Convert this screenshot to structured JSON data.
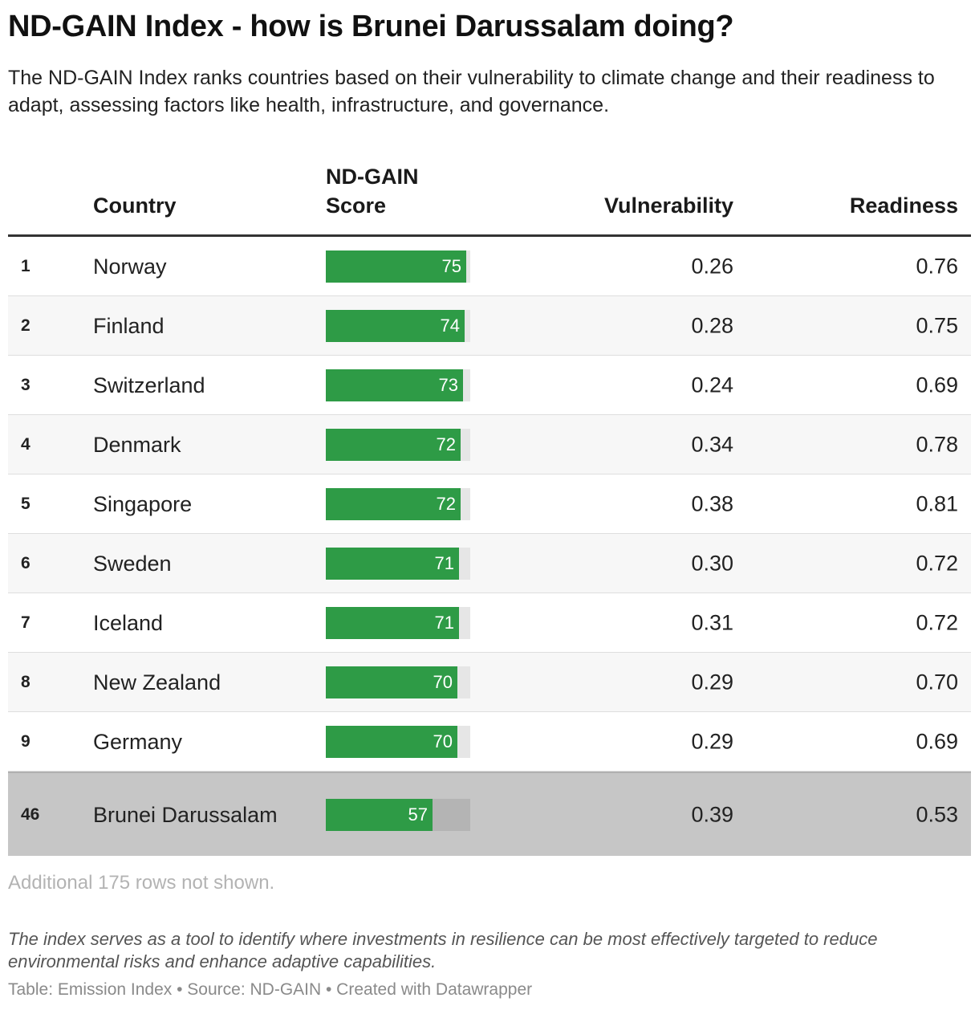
{
  "title": "ND-GAIN Index - how is Brunei Darussalam doing?",
  "subtitle": "The ND-GAIN Index ranks countries based on their vulnerability to climate change and their readiness to adapt, assessing factors like health, infrastructure, and governance.",
  "columns": {
    "country": "Country",
    "score_line1": "ND-GAIN",
    "score_line2": "Score",
    "vulnerability": "Vulnerability",
    "readiness": "Readiness"
  },
  "colors": {
    "bar": "#2e9b46",
    "highlight_row": "#c6c6c6"
  },
  "chart_data": {
    "type": "table",
    "score_max": 75,
    "rows": [
      {
        "rank": "1",
        "country": "Norway",
        "score": 75,
        "vulnerability": "0.26",
        "readiness": "0.76"
      },
      {
        "rank": "2",
        "country": "Finland",
        "score": 74,
        "vulnerability": "0.28",
        "readiness": "0.75"
      },
      {
        "rank": "3",
        "country": "Switzerland",
        "score": 73,
        "vulnerability": "0.24",
        "readiness": "0.69"
      },
      {
        "rank": "4",
        "country": "Denmark",
        "score": 72,
        "vulnerability": "0.34",
        "readiness": "0.78"
      },
      {
        "rank": "5",
        "country": "Singapore",
        "score": 72,
        "vulnerability": "0.38",
        "readiness": "0.81"
      },
      {
        "rank": "6",
        "country": "Sweden",
        "score": 71,
        "vulnerability": "0.30",
        "readiness": "0.72"
      },
      {
        "rank": "7",
        "country": "Iceland",
        "score": 71,
        "vulnerability": "0.31",
        "readiness": "0.72"
      },
      {
        "rank": "8",
        "country": "New Zealand",
        "score": 70,
        "vulnerability": "0.29",
        "readiness": "0.70"
      },
      {
        "rank": "9",
        "country": "Germany",
        "score": 70,
        "vulnerability": "0.29",
        "readiness": "0.69"
      },
      {
        "rank": "46",
        "country": "Brunei Darussalam",
        "score": 57,
        "vulnerability": "0.39",
        "readiness": "0.53",
        "highlight": true
      }
    ]
  },
  "more_rows": "Additional 175 rows not shown.",
  "note": "The index serves as a tool to identify where investments in resilience can be most effectively targeted to reduce environmental risks and enhance adaptive capabilities.",
  "credit": "Table: Emission Index • Source: ND-GAIN • Created with Datawrapper"
}
